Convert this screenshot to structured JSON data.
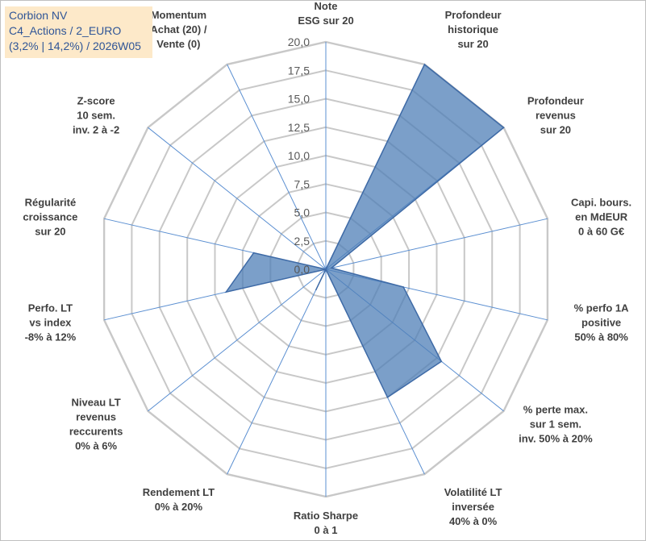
{
  "title_box": {
    "line1": "Corbion NV",
    "line2": "C4_Actions / 2_EURO",
    "line3": "(3,2% | 14,2%) / 2026W05"
  },
  "chart_data": {
    "type": "radar",
    "title": "Corbion NV",
    "range": [
      0,
      20
    ],
    "tick_step": 2.5,
    "tick_labels": [
      "0,0",
      "2,5",
      "5,0",
      "7,5",
      "10,0",
      "12,5",
      "15,0",
      "17,5",
      "20,0"
    ],
    "axes": [
      {
        "label": [
          "Note",
          "ESG sur 20"
        ],
        "value": 0
      },
      {
        "label": [
          "Profondeur",
          "historique",
          "sur 20"
        ],
        "value": 20
      },
      {
        "label": [
          "Profondeur",
          "revenus",
          "sur 20"
        ],
        "value": 20
      },
      {
        "label": [
          "Capi. bours.",
          "en MdEUR",
          "0 à 60 G€"
        ],
        "value": 0.5
      },
      {
        "label": [
          "% perfo 1A",
          "positive",
          "50% à 80%"
        ],
        "value": 7
      },
      {
        "label": [
          "% perte max.",
          "sur 1 sem.",
          "inv. 50% à 20%"
        ],
        "value": 13
      },
      {
        "label": [
          "Volatilité LT",
          "inversée",
          "40% à 0%"
        ],
        "value": 12.5
      },
      {
        "label": [
          "Ratio Sharpe",
          "0 à 1"
        ],
        "value": 0
      },
      {
        "label": [
          "Rendement LT",
          "0% à 20%"
        ],
        "value": 2
      },
      {
        "label": [
          "Niveau LT",
          "revenus",
          "reccurents",
          "0% à 6%"
        ],
        "value": 0
      },
      {
        "label": [
          "Perfo. LT",
          "vs index",
          "-8% à 12%"
        ],
        "value": 9
      },
      {
        "label": [
          "Régularité",
          "croissance",
          "sur 20"
        ],
        "value": 6.5
      },
      {
        "label": [
          "Z-score",
          "10 sem.",
          "inv. 2 à -2"
        ],
        "value": 0
      },
      {
        "label": [
          "Momentum",
          "Achat (20) /",
          "Vente (0)"
        ],
        "value": 0
      }
    ],
    "colors": {
      "fill": "#4f7fb7",
      "stroke": "#3e6aa6",
      "grid": "#c8c8c8",
      "spoke": "#5b8fd1"
    }
  }
}
